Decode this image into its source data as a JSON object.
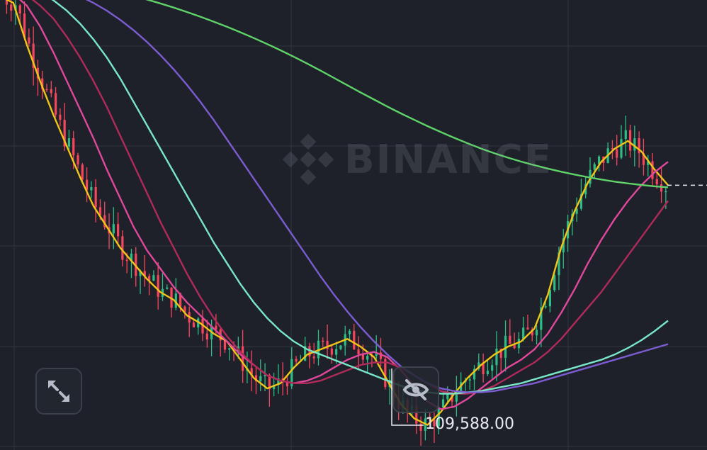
{
  "watermark": {
    "text": "BINANCE"
  },
  "toolbar": {
    "expand_icon": "expand-arrows-icon",
    "hide_icon": "eye-slash-icon"
  },
  "colors": {
    "background": "#1e2129",
    "grid": "#2b2f38",
    "candle_up": "#2ebd85",
    "candle_down": "#f6465d",
    "ma_yellow": "#f0c419",
    "ma_pink": "#e0489c",
    "ma_maroon": "#b02a5a",
    "ma_cyan": "#79e6c8",
    "ma_purple": "#7b5cd1",
    "ma_green": "#5fd36a",
    "label": "#e8eaef"
  },
  "chart_data": {
    "type": "candlestick",
    "low_marker": {
      "label": "109,588.00",
      "value": 109588.0
    },
    "moving_averages": [
      {
        "color": "#f0c419",
        "values": [
          126050,
          125800,
          124200,
          122800,
          121500,
          120300,
          119100,
          118000,
          117200,
          116400,
          115800,
          115200,
          114700,
          114400,
          113800,
          113500,
          113100,
          112800,
          112100,
          111400,
          111000,
          111200,
          111800,
          112300,
          112500,
          112700,
          112900,
          112600,
          112200,
          111300,
          110400,
          109850,
          109600,
          110100,
          110800,
          111400,
          111900,
          112300,
          112600,
          112800,
          113300,
          114600,
          116400,
          117800,
          118900,
          119700,
          120200,
          120500,
          120100,
          119400,
          118800
        ]
      },
      {
        "color": "#e0489c",
        "values": [
          126300,
          126150,
          125700,
          124900,
          123900,
          122800,
          121700,
          120600,
          119400,
          118300,
          117200,
          116300,
          115600,
          114900,
          114300,
          113800,
          113300,
          112800,
          112300,
          111900,
          111500,
          111300,
          111200,
          111300,
          111500,
          111800,
          112100,
          112300,
          112400,
          112200,
          111700,
          111100,
          110500,
          110200,
          110300,
          110600,
          111000,
          111400,
          111800,
          112100,
          112500,
          113100,
          113900,
          114800,
          115800,
          116700,
          117500,
          118200,
          118800,
          119300,
          119700
        ]
      },
      {
        "color": "#b02a5a",
        "values": [
          126400,
          126300,
          126100,
          125700,
          125200,
          124500,
          123700,
          122800,
          121800,
          120700,
          119600,
          118500,
          117400,
          116400,
          115400,
          114500,
          113700,
          113000,
          112400,
          111900,
          111500,
          111300,
          111200,
          111200,
          111300,
          111500,
          111700,
          111900,
          112000,
          112000,
          111800,
          111500,
          111200,
          110900,
          110800,
          110800,
          110900,
          111100,
          111400,
          111700,
          112000,
          112400,
          112900,
          113500,
          114100,
          114700,
          115400,
          116100,
          116800,
          117500,
          118200
        ]
      },
      {
        "color": "#79e6c8",
        "values": [
          126500,
          126450,
          126350,
          126200,
          125900,
          125500,
          125000,
          124400,
          123700,
          122900,
          122000,
          121100,
          120200,
          119300,
          118400,
          117500,
          116600,
          115800,
          115000,
          114300,
          113700,
          113200,
          112800,
          112500,
          112300,
          112100,
          111900,
          111700,
          111500,
          111300,
          111100,
          110950,
          110850,
          110800,
          110800,
          110850,
          110900,
          111000,
          111100,
          111200,
          111350,
          111500,
          111650,
          111800,
          111950,
          112100,
          112300,
          112550,
          112850,
          113200,
          113600
        ]
      },
      {
        "color": "#7b5cd1",
        "values": [
          126600,
          126580,
          126550,
          126500,
          126400,
          126250,
          126050,
          125800,
          125500,
          125150,
          124750,
          124300,
          123800,
          123250,
          122650,
          122000,
          121300,
          120550,
          119800,
          119050,
          118300,
          117550,
          116800,
          116050,
          115300,
          114600,
          113950,
          113350,
          112800,
          112300,
          111850,
          111500,
          111200,
          111000,
          110900,
          110850,
          110850,
          110900,
          111000,
          111100,
          111200,
          111350,
          111500,
          111650,
          111800,
          111950,
          112100,
          112250,
          112400,
          112550,
          112700
        ]
      },
      {
        "color": "#5fd36a",
        "values": [
          126700,
          126700,
          126700,
          126690,
          126650,
          126600,
          126520,
          126430,
          126320,
          126200,
          126070,
          125930,
          125780,
          125620,
          125450,
          125270,
          125080,
          124880,
          124670,
          124450,
          124220,
          123980,
          123730,
          123470,
          123200,
          122920,
          122640,
          122360,
          122090,
          121820,
          121560,
          121310,
          121070,
          120840,
          120620,
          120410,
          120210,
          120030,
          119860,
          119710,
          119570,
          119440,
          119320,
          119210,
          119110,
          119020,
          118940,
          118870,
          118810,
          118760,
          118720
        ]
      }
    ]
  }
}
